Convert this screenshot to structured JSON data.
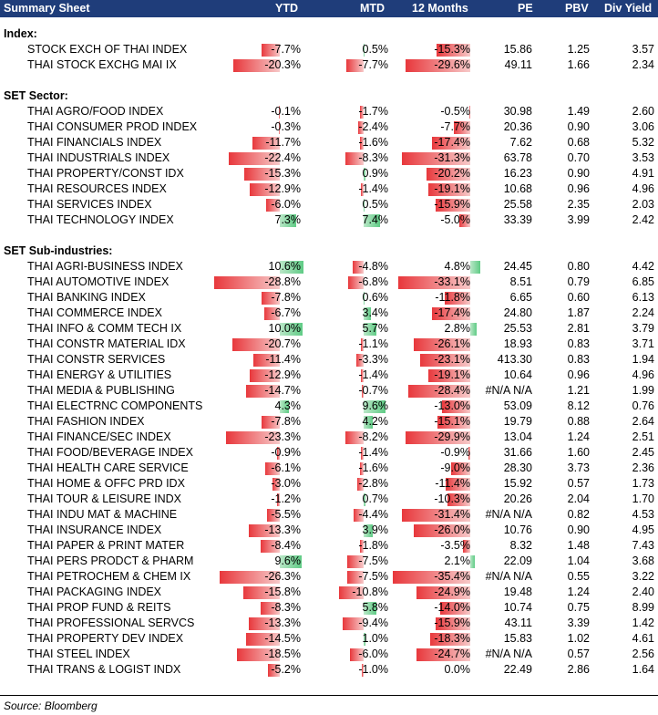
{
  "header": {
    "title": "Summary Sheet",
    "cols": [
      "YTD",
      "MTD",
      "12 Months",
      "PE",
      "PBV",
      "Div Yield"
    ]
  },
  "source": "Source: Bloomberg",
  "sections": [
    {
      "title": "Index:",
      "rows": [
        {
          "name": "STOCK EXCH OF THAI INDEX",
          "ytd": -7.7,
          "ytd_t": "-7.7%",
          "mtd": 0.5,
          "mtd_t": "0.5%",
          "m12": -15.3,
          "m12_t": "-15.3%",
          "pe": "15.86",
          "pbv": "1.25",
          "dy": "3.57"
        },
        {
          "name": "THAI STOCK EXCHG MAI IX",
          "ytd": -20.3,
          "ytd_t": "-20.3%",
          "mtd": -7.7,
          "mtd_t": "-7.7%",
          "m12": -29.6,
          "m12_t": "-29.6%",
          "pe": "49.11",
          "pbv": "1.66",
          "dy": "2.34"
        }
      ]
    },
    {
      "title": "SET Sector:",
      "rows": [
        {
          "name": "THAI AGRO/FOOD INDEX",
          "ytd": -0.1,
          "ytd_t": "-0.1%",
          "mtd": -1.7,
          "mtd_t": "-1.7%",
          "m12": -0.5,
          "m12_t": "-0.5%",
          "pe": "30.98",
          "pbv": "1.49",
          "dy": "2.60"
        },
        {
          "name": "THAI CONSUMER PROD INDEX",
          "ytd": -0.3,
          "ytd_t": "-0.3%",
          "mtd": -2.4,
          "mtd_t": "-2.4%",
          "m12": -7.7,
          "m12_t": "-7.7%",
          "pe": "20.36",
          "pbv": "0.90",
          "dy": "3.06"
        },
        {
          "name": "THAI FINANCIALS INDEX",
          "ytd": -11.7,
          "ytd_t": "-11.7%",
          "mtd": -1.6,
          "mtd_t": "-1.6%",
          "m12": -17.4,
          "m12_t": "-17.4%",
          "pe": "7.62",
          "pbv": "0.68",
          "dy": "5.32"
        },
        {
          "name": "THAI INDUSTRIALS INDEX",
          "ytd": -22.4,
          "ytd_t": "-22.4%",
          "mtd": -8.3,
          "mtd_t": "-8.3%",
          "m12": -31.3,
          "m12_t": "-31.3%",
          "pe": "63.78",
          "pbv": "0.70",
          "dy": "3.53"
        },
        {
          "name": "THAI PROPERTY/CONST IDX",
          "ytd": -15.3,
          "ytd_t": "-15.3%",
          "mtd": 0.9,
          "mtd_t": "0.9%",
          "m12": -20.2,
          "m12_t": "-20.2%",
          "pe": "16.23",
          "pbv": "0.90",
          "dy": "4.91"
        },
        {
          "name": "THAI RESOURCES INDEX",
          "ytd": -12.9,
          "ytd_t": "-12.9%",
          "mtd": -1.4,
          "mtd_t": "-1.4%",
          "m12": -19.1,
          "m12_t": "-19.1%",
          "pe": "10.68",
          "pbv": "0.96",
          "dy": "4.96"
        },
        {
          "name": "THAI SERVICES INDEX",
          "ytd": -6.0,
          "ytd_t": "-6.0%",
          "mtd": 0.5,
          "mtd_t": "0.5%",
          "m12": -15.9,
          "m12_t": "-15.9%",
          "pe": "25.58",
          "pbv": "2.35",
          "dy": "2.03"
        },
        {
          "name": "THAI TECHNOLOGY INDEX",
          "ytd": 7.3,
          "ytd_t": "7.3%",
          "mtd": 7.4,
          "mtd_t": "7.4%",
          "m12": -5.0,
          "m12_t": "-5.0%",
          "pe": "33.39",
          "pbv": "3.99",
          "dy": "2.42"
        }
      ]
    },
    {
      "title": "SET Sub-industries:",
      "rows": [
        {
          "name": "THAI AGRI-BUSINESS INDEX",
          "ytd": 10.6,
          "ytd_t": "10.6%",
          "mtd": -4.8,
          "mtd_t": "-4.8%",
          "m12": 4.8,
          "m12_t": "4.8%",
          "pe": "24.45",
          "pbv": "0.80",
          "dy": "4.42"
        },
        {
          "name": "THAI AUTOMOTIVE INDEX",
          "ytd": -28.8,
          "ytd_t": "-28.8%",
          "mtd": -6.8,
          "mtd_t": "-6.8%",
          "m12": -33.1,
          "m12_t": "-33.1%",
          "pe": "8.51",
          "pbv": "0.79",
          "dy": "6.85"
        },
        {
          "name": "THAI BANKING INDEX",
          "ytd": -7.8,
          "ytd_t": "-7.8%",
          "mtd": 0.6,
          "mtd_t": "0.6%",
          "m12": -11.8,
          "m12_t": "-11.8%",
          "pe": "6.65",
          "pbv": "0.60",
          "dy": "6.13"
        },
        {
          "name": "THAI COMMERCE INDEX",
          "ytd": -6.7,
          "ytd_t": "-6.7%",
          "mtd": 3.4,
          "mtd_t": "3.4%",
          "m12": -17.4,
          "m12_t": "-17.4%",
          "pe": "24.80",
          "pbv": "1.87",
          "dy": "2.24"
        },
        {
          "name": "THAI INFO & COMM TECH IX",
          "ytd": 10.0,
          "ytd_t": "10.0%",
          "mtd": 5.7,
          "mtd_t": "5.7%",
          "m12": 2.8,
          "m12_t": "2.8%",
          "pe": "25.53",
          "pbv": "2.81",
          "dy": "3.79"
        },
        {
          "name": "THAI CONSTR MATERIAL IDX",
          "ytd": -20.7,
          "ytd_t": "-20.7%",
          "mtd": -1.1,
          "mtd_t": "-1.1%",
          "m12": -26.1,
          "m12_t": "-26.1%",
          "pe": "18.93",
          "pbv": "0.83",
          "dy": "3.71"
        },
        {
          "name": "THAI CONSTR SERVICES",
          "ytd": -11.4,
          "ytd_t": "-11.4%",
          "mtd": -3.3,
          "mtd_t": "-3.3%",
          "m12": -23.1,
          "m12_t": "-23.1%",
          "pe": "413.30",
          "pbv": "0.83",
          "dy": "1.94"
        },
        {
          "name": "THAI ENERGY & UTILITIES",
          "ytd": -12.9,
          "ytd_t": "-12.9%",
          "mtd": -1.4,
          "mtd_t": "-1.4%",
          "m12": -19.1,
          "m12_t": "-19.1%",
          "pe": "10.64",
          "pbv": "0.96",
          "dy": "4.96"
        },
        {
          "name": "THAI MEDIA & PUBLISHING",
          "ytd": -14.7,
          "ytd_t": "-14.7%",
          "mtd": -0.7,
          "mtd_t": "-0.7%",
          "m12": -28.4,
          "m12_t": "-28.4%",
          "pe": "#N/A N/A",
          "pbv": "1.21",
          "dy": "1.99"
        },
        {
          "name": "THAI ELECTRNC COMPONENTS",
          "ytd": 4.3,
          "ytd_t": "4.3%",
          "mtd": 9.6,
          "mtd_t": "9.6%",
          "m12": -13.0,
          "m12_t": "-13.0%",
          "pe": "53.09",
          "pbv": "8.12",
          "dy": "0.76"
        },
        {
          "name": "THAI FASHION INDEX",
          "ytd": -7.8,
          "ytd_t": "-7.8%",
          "mtd": 4.2,
          "mtd_t": "4.2%",
          "m12": -15.1,
          "m12_t": "-15.1%",
          "pe": "19.79",
          "pbv": "0.88",
          "dy": "2.64"
        },
        {
          "name": "THAI FINANCE/SEC INDEX",
          "ytd": -23.3,
          "ytd_t": "-23.3%",
          "mtd": -8.2,
          "mtd_t": "-8.2%",
          "m12": -29.9,
          "m12_t": "-29.9%",
          "pe": "13.04",
          "pbv": "1.24",
          "dy": "2.51"
        },
        {
          "name": "THAI FOOD/BEVERAGE INDEX",
          "ytd": -0.9,
          "ytd_t": "-0.9%",
          "mtd": -1.4,
          "mtd_t": "-1.4%",
          "m12": -0.9,
          "m12_t": "-0.9%",
          "pe": "31.66",
          "pbv": "1.60",
          "dy": "2.45"
        },
        {
          "name": "THAI HEALTH CARE SERVICE",
          "ytd": -6.1,
          "ytd_t": "-6.1%",
          "mtd": -1.6,
          "mtd_t": "-1.6%",
          "m12": -9.0,
          "m12_t": "-9.0%",
          "pe": "28.30",
          "pbv": "3.73",
          "dy": "2.36"
        },
        {
          "name": "THAI HOME & OFFC PRD IDX",
          "ytd": -3.0,
          "ytd_t": "-3.0%",
          "mtd": -2.8,
          "mtd_t": "-2.8%",
          "m12": -11.4,
          "m12_t": "-11.4%",
          "pe": "15.92",
          "pbv": "0.57",
          "dy": "1.73"
        },
        {
          "name": "THAI TOUR & LEISURE INDX",
          "ytd": -1.2,
          "ytd_t": "-1.2%",
          "mtd": 0.7,
          "mtd_t": "0.7%",
          "m12": -10.3,
          "m12_t": "-10.3%",
          "pe": "20.26",
          "pbv": "2.04",
          "dy": "1.70"
        },
        {
          "name": "THAI INDU MAT & MACHINE",
          "ytd": -5.5,
          "ytd_t": "-5.5%",
          "mtd": -4.4,
          "mtd_t": "-4.4%",
          "m12": -31.4,
          "m12_t": "-31.4%",
          "pe": "#N/A N/A",
          "pbv": "0.82",
          "dy": "4.53"
        },
        {
          "name": "THAI INSURANCE INDEX",
          "ytd": -13.3,
          "ytd_t": "-13.3%",
          "mtd": 3.9,
          "mtd_t": "3.9%",
          "m12": -26.0,
          "m12_t": "-26.0%",
          "pe": "10.76",
          "pbv": "0.90",
          "dy": "4.95"
        },
        {
          "name": "THAI PAPER & PRINT MATER",
          "ytd": -8.4,
          "ytd_t": "-8.4%",
          "mtd": -1.8,
          "mtd_t": "-1.8%",
          "m12": -3.5,
          "m12_t": "-3.5%",
          "pe": "8.32",
          "pbv": "1.48",
          "dy": "7.43"
        },
        {
          "name": "THAI PERS PRODCT & PHARM",
          "ytd": 9.6,
          "ytd_t": "9.6%",
          "mtd": -7.5,
          "mtd_t": "-7.5%",
          "m12": 2.1,
          "m12_t": "2.1%",
          "pe": "22.09",
          "pbv": "1.04",
          "dy": "3.68"
        },
        {
          "name": "THAI PETROCHEM & CHEM IX",
          "ytd": -26.3,
          "ytd_t": "-26.3%",
          "mtd": -7.5,
          "mtd_t": "-7.5%",
          "m12": -35.4,
          "m12_t": "-35.4%",
          "pe": "#N/A N/A",
          "pbv": "0.55",
          "dy": "3.22"
        },
        {
          "name": "THAI PACKAGING INDEX",
          "ytd": -15.8,
          "ytd_t": "-15.8%",
          "mtd": -10.8,
          "mtd_t": "-10.8%",
          "m12": -24.9,
          "m12_t": "-24.9%",
          "pe": "19.48",
          "pbv": "1.24",
          "dy": "2.40"
        },
        {
          "name": "THAI PROP FUND & REITS",
          "ytd": -8.3,
          "ytd_t": "-8.3%",
          "mtd": 5.8,
          "mtd_t": "5.8%",
          "m12": -14.0,
          "m12_t": "-14.0%",
          "pe": "10.74",
          "pbv": "0.75",
          "dy": "8.99"
        },
        {
          "name": "THAI PROFESSIONAL SERVCS",
          "ytd": -13.3,
          "ytd_t": "-13.3%",
          "mtd": -9.4,
          "mtd_t": "-9.4%",
          "m12": -15.9,
          "m12_t": "-15.9%",
          "pe": "43.11",
          "pbv": "3.39",
          "dy": "1.42"
        },
        {
          "name": "THAI PROPERTY DEV INDEX",
          "ytd": -14.5,
          "ytd_t": "-14.5%",
          "mtd": 1.0,
          "mtd_t": "1.0%",
          "m12": -18.3,
          "m12_t": "-18.3%",
          "pe": "15.83",
          "pbv": "1.02",
          "dy": "4.61"
        },
        {
          "name": "THAI STEEL INDEX",
          "ytd": -18.5,
          "ytd_t": "-18.5%",
          "mtd": -6.0,
          "mtd_t": "-6.0%",
          "m12": -24.7,
          "m12_t": "-24.7%",
          "pe": "#N/A N/A",
          "pbv": "0.57",
          "dy": "2.56"
        },
        {
          "name": "THAI TRANS & LOGIST INDX",
          "ytd": -5.2,
          "ytd_t": "-5.2%",
          "mtd": -1.0,
          "mtd_t": "-1.0%",
          "m12": 0.0,
          "m12_t": "0.0%",
          "pe": "22.49",
          "pbv": "2.86",
          "dy": "1.64"
        }
      ]
    }
  ]
}
